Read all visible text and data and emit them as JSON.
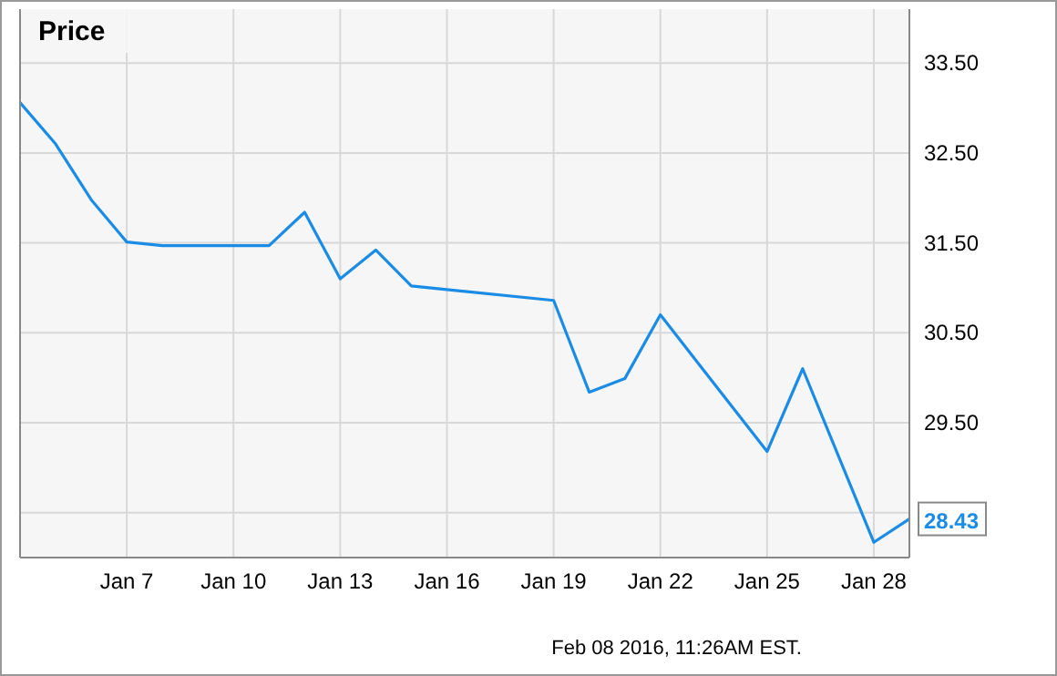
{
  "chart_data": {
    "type": "line",
    "title": "Price",
    "x": [
      "2016-01-04",
      "2016-01-05",
      "2016-01-06",
      "2016-01-07",
      "2016-01-08",
      "2016-01-11",
      "2016-01-12",
      "2016-01-13",
      "2016-01-14",
      "2016-01-15",
      "2016-01-19",
      "2016-01-20",
      "2016-01-21",
      "2016-01-22",
      "2016-01-25",
      "2016-01-26",
      "2016-01-28",
      "2016-01-29"
    ],
    "series": [
      {
        "color": "#1a8ce6",
        "values": [
          33.06,
          32.6,
          31.98,
          31.51,
          31.47,
          31.47,
          31.84,
          31.1,
          31.42,
          31.02,
          30.86,
          29.84,
          29.99,
          30.7,
          29.18,
          30.1,
          28.17,
          28.43
        ]
      }
    ],
    "xlim": [
      "2016-01-04",
      "2016-01-29"
    ],
    "xticks": [
      {
        "value": "2016-01-07",
        "label": "Jan 7"
      },
      {
        "value": "2016-01-10",
        "label": "Jan 10"
      },
      {
        "value": "2016-01-13",
        "label": "Jan 13"
      },
      {
        "value": "2016-01-16",
        "label": "Jan 16"
      },
      {
        "value": "2016-01-19",
        "label": "Jan 19"
      },
      {
        "value": "2016-01-22",
        "label": "Jan 22"
      },
      {
        "value": "2016-01-25",
        "label": "Jan 25"
      },
      {
        "value": "2016-01-28",
        "label": "Jan 28"
      }
    ],
    "ylim": [
      28.0,
      34.1
    ],
    "yticks": [
      {
        "value": 28.5,
        "label": null
      },
      {
        "value": 29.5,
        "label": "29.50"
      },
      {
        "value": 30.5,
        "label": "30.50"
      },
      {
        "value": 31.5,
        "label": "31.50"
      },
      {
        "value": 32.5,
        "label": "32.50"
      },
      {
        "value": 33.5,
        "label": "33.50"
      }
    ],
    "grid": true,
    "marker": "none",
    "line_style": "solid",
    "annotations": [
      {
        "text": "28.43",
        "x": "2016-01-29",
        "y": 28.43
      },
      "Feb 08 2016, 11:26AM EST."
    ]
  }
}
